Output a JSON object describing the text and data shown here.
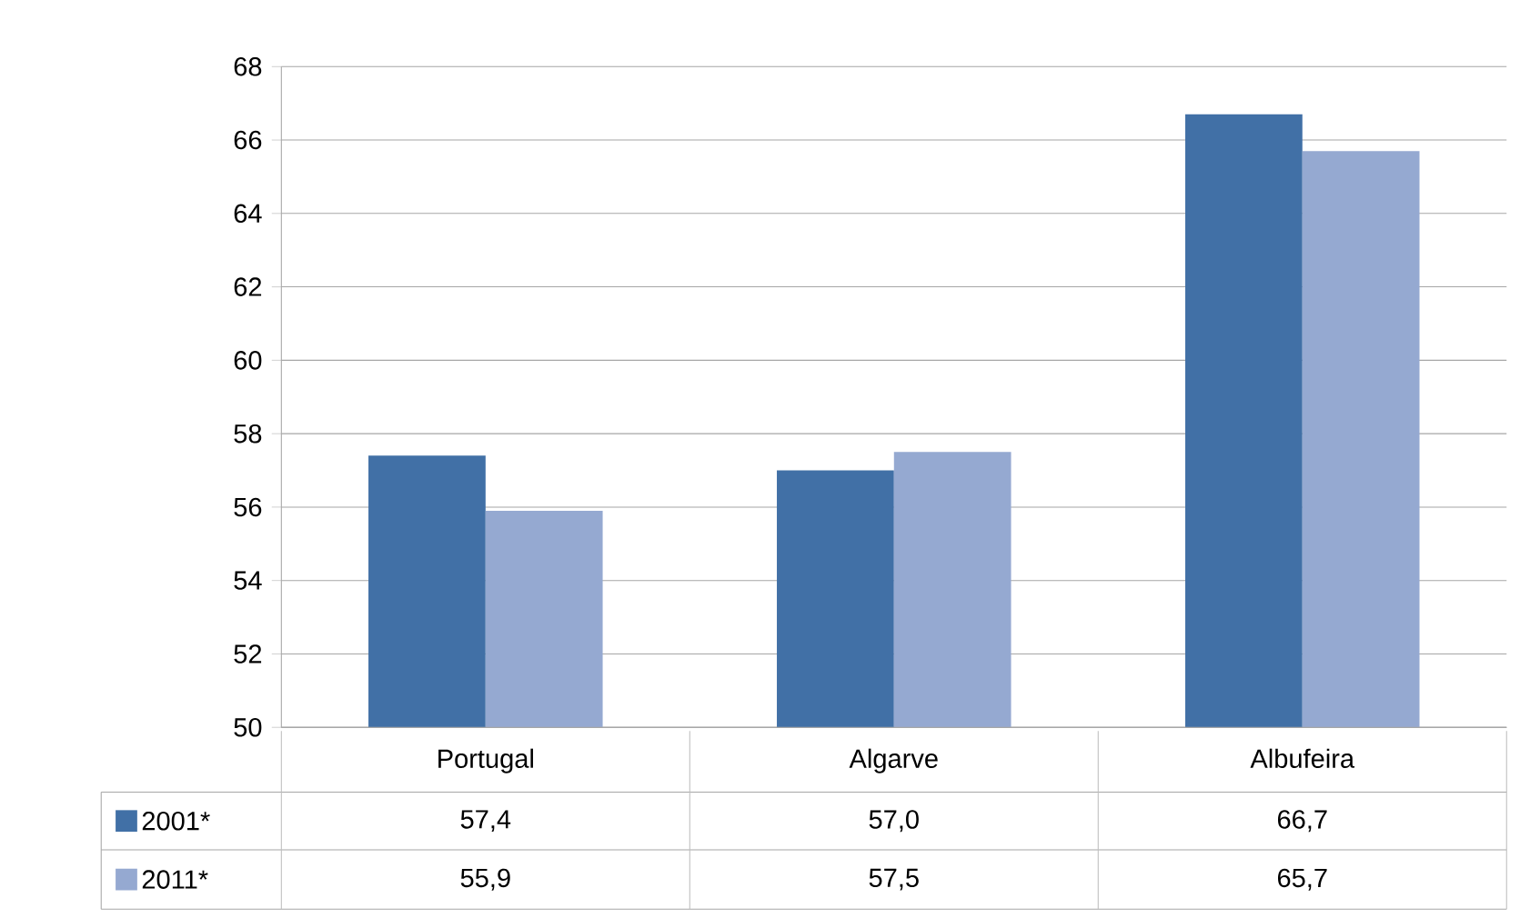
{
  "chart_data": {
    "type": "bar",
    "categories": [
      "Portugal",
      "Algarve",
      "Albufeira"
    ],
    "series": [
      {
        "name": "2001*",
        "color": "#4170a6",
        "values": [
          57.4,
          57.0,
          66.7
        ],
        "value_labels": [
          "57,4",
          "57,0",
          "66,7"
        ]
      },
      {
        "name": "2011*",
        "color": "#95a9d1",
        "values": [
          55.9,
          57.5,
          65.7
        ],
        "value_labels": [
          "55,9",
          "57,5",
          "65,7"
        ]
      }
    ],
    "ylim": [
      50,
      68
    ],
    "yticks": [
      50,
      52,
      54,
      56,
      58,
      60,
      62,
      64,
      66,
      68
    ],
    "grid": "y",
    "legend": "bottom"
  }
}
